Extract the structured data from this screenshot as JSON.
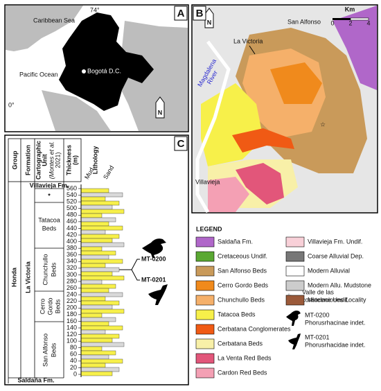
{
  "panel_a": {
    "label": "A",
    "caribbean": "Caribbean Sea",
    "pacific": "Pacific Ocean",
    "capital": "Bogotá D.C.",
    "lon": "74°",
    "lat": "0°",
    "north": "N"
  },
  "panel_b": {
    "label": "B",
    "km": "Km",
    "scale": [
      "0",
      "2",
      "4"
    ],
    "san_alfonso": "San Alfonso",
    "la_victoria": "La Victoria",
    "river": [
      "Magdalena",
      "River"
    ],
    "villavieja": "Villavieja",
    "north": "N"
  },
  "panel_c": {
    "label": "C",
    "headers": {
      "group": "Group",
      "formation": "Formation",
      "unit": [
        "Cartographic",
        "Unit",
        "(Montes et al.",
        "2021)"
      ],
      "thickness": [
        "Thickness",
        "(m)"
      ],
      "lithology": "Lithology",
      "mud": "Mud",
      "sand": "Sand"
    },
    "thickness_ticks": [
      0,
      20,
      40,
      60,
      80,
      100,
      120,
      140,
      160,
      180,
      200,
      220,
      240,
      260,
      280,
      300,
      320,
      340,
      360,
      380,
      400,
      420,
      440,
      460,
      480,
      500,
      520,
      540,
      560
    ],
    "thickness_lim": [
      0,
      560
    ],
    "group": "Honda",
    "formation": "La Victoria",
    "units": {
      "villavieja": "Villavieja Fm.",
      "star": "*",
      "tatacoa": [
        "Tatacoa",
        "Beds"
      ],
      "chunchullo": [
        "Chunchullo",
        "Beds"
      ],
      "cerro_gordo": [
        "Cerro",
        "Gordo",
        "Beds"
      ],
      "san_alfonso": [
        "San Alfonso",
        "Beds"
      ],
      "saldana": "Saldaña Fm."
    },
    "specimens": [
      "MT-0200",
      "MT-0201"
    ]
  },
  "legend": {
    "title": "LEGEND",
    "left": [
      {
        "label": "Saldaña Fm.",
        "color": "#b067c9"
      },
      {
        "label": "Cretaceous Undif.",
        "color": "#5aa832"
      },
      {
        "label": "San Alfonso Beds",
        "color": "#c99a5a"
      },
      {
        "label": "Cerro Gordo Beds",
        "color": "#f08a1c"
      },
      {
        "label": "Chunchullo Beds",
        "color": "#f5b06a"
      },
      {
        "label": "Tatacoa Beds",
        "color": "#f7f04a"
      },
      {
        "label": "Cerbatana Conglomerates",
        "color": "#f05a14"
      },
      {
        "label": "Cerbatana Beds",
        "color": "#f8f0a8"
      },
      {
        "label": "La Venta Red Beds",
        "color": "#e2567a"
      },
      {
        "label": "Cardon Red Beds",
        "color": "#f4a0b4"
      }
    ],
    "right": [
      {
        "label": "Villavieja Fm. Undif.",
        "color": "#f8d0d8"
      },
      {
        "label": "Coarse Alluvial Dep.",
        "color": "#777777"
      },
      {
        "label": "Modern Alluvial",
        "color": "#ffffff"
      },
      {
        "label": "Modern Allu. Mudstone",
        "color": "#cccccc"
      },
      {
        "label": "Miocene Undif.",
        "color": "#9b5a3a"
      }
    ],
    "locality": [
      "Valle de las",
      "constelaciones Locality"
    ],
    "birds": [
      [
        "MT-0200",
        "Phorusrhacinae indet."
      ],
      [
        "MT-0201",
        "Phorusrhacidae indet."
      ]
    ]
  }
}
